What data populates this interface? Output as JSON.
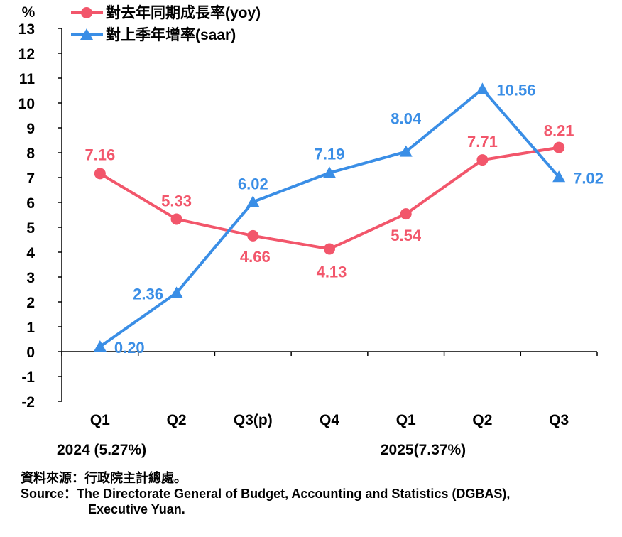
{
  "chart_data": {
    "type": "line",
    "y_unit": "%",
    "ylim": [
      -2,
      13
    ],
    "y_ticks": [
      "13",
      "12",
      "11",
      "10",
      "9",
      "8",
      "7",
      "6",
      "5",
      "4",
      "3",
      "2",
      "1",
      "0",
      "-1",
      "-2"
    ],
    "categories": [
      "Q1",
      "Q2",
      "Q3(p)",
      "Q4",
      "Q1",
      "Q2",
      "Q3"
    ],
    "year_labels": [
      "2024 (5.27%)",
      "2025(7.37%)"
    ],
    "series": [
      {
        "name": "對去年同期成長率(yoy)",
        "color": "#f2566b",
        "marker": "circle",
        "values": [
          7.16,
          5.33,
          4.66,
          4.13,
          5.54,
          7.71,
          8.21
        ],
        "labels": [
          "7.16",
          "5.33",
          "4.66",
          "4.13",
          "5.54",
          "7.71",
          "8.21"
        ]
      },
      {
        "name": "對上季年增率(saar)",
        "color": "#3a8ee6",
        "marker": "triangle",
        "values": [
          0.2,
          2.36,
          6.02,
          7.19,
          8.04,
          10.56,
          7.02
        ],
        "labels": [
          "0.20",
          "2.36",
          "6.02",
          "7.19",
          "8.04",
          "10.56",
          "7.02"
        ]
      }
    ]
  },
  "source": {
    "line1": "資料來源：行政院主計總處。",
    "line2": "Source：The Directorate General of Budget, Accounting and Statistics (DGBAS),",
    "line3": "Executive Yuan."
  }
}
